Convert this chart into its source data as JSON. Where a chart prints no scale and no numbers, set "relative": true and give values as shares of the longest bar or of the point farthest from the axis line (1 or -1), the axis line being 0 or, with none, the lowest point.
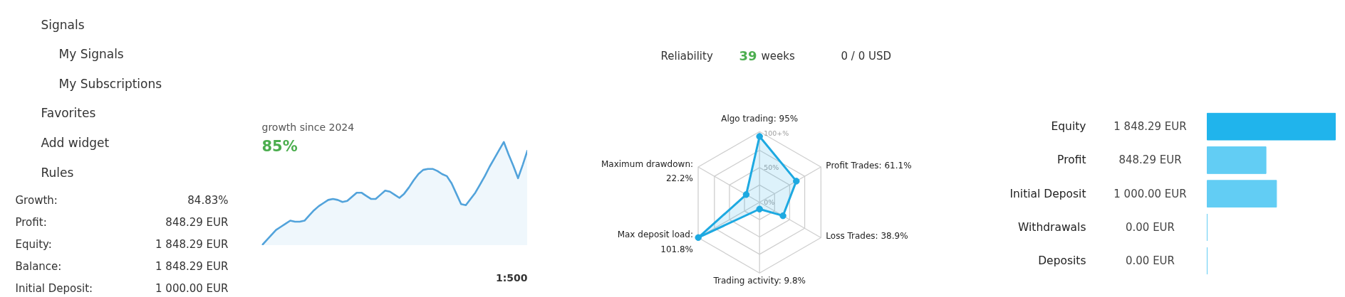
{
  "chart_data": [
    {
      "type": "other",
      "annotations": [
        "Signals",
        "My Signals",
        "My Subscriptions",
        "Favorites",
        "Add widget",
        "Rules"
      ]
    },
    {
      "type": "other",
      "annotations": [
        "Growth:",
        "84.83%",
        "Profit:",
        "848.29 EUR",
        "Equity:",
        "1 848.29 EUR",
        "Balance:",
        "1 848.29 EUR",
        "Initial Deposit:",
        "1 000.00 EUR"
      ]
    },
    {
      "type": "other",
      "annotations": [
        "Reliability",
        "39",
        "weeks",
        "0 / 0 USD"
      ]
    },
    {
      "type": "area",
      "title": "growth since 2024",
      "subtitle": "85%",
      "annotations": [
        "1:500"
      ],
      "relative": true,
      "categories": [
        null,
        null,
        null,
        null,
        null,
        null,
        null,
        null,
        null,
        null,
        null,
        null,
        null,
        null,
        null,
        null,
        null,
        null,
        null,
        null,
        null,
        null,
        null,
        null,
        null,
        null,
        null,
        null,
        null,
        null,
        null,
        null,
        null,
        null,
        null,
        null,
        null,
        null,
        null,
        null,
        null,
        null,
        null,
        null,
        null,
        null,
        null,
        null,
        null,
        null,
        null,
        null,
        null,
        null,
        null,
        null,
        null
      ],
      "series": [
        {
          "color": "#52a3db",
          "values": [
            0.0,
            0.05,
            0.1,
            0.15,
            0.18,
            0.21,
            0.24,
            0.23,
            0.23,
            0.24,
            0.29,
            0.34,
            0.38,
            0.41,
            0.44,
            0.45,
            0.44,
            0.42,
            0.43,
            0.47,
            0.51,
            0.51,
            0.48,
            0.45,
            0.45,
            0.49,
            0.53,
            0.52,
            0.49,
            0.46,
            0.5,
            0.56,
            0.63,
            0.69,
            0.73,
            0.74,
            0.74,
            0.72,
            0.69,
            0.67,
            0.6,
            0.5,
            0.4,
            0.39,
            0.45,
            0.51,
            0.59,
            0.67,
            0.76,
            0.84,
            0.92,
            1.0,
            0.88,
            0.77,
            0.65,
            0.78,
            0.92
          ]
        }
      ]
    },
    {
      "type": "radar",
      "categories": [
        "Algo trading: 95%",
        "Profit Trades: 61.1%",
        "Loss Trades: 38.9%",
        "Trading activity: 9.8%",
        "Max deposit load: 101.8%",
        "Maximum drawdown: 22.2%"
      ],
      "series": [
        {
          "color": "#1da9e1",
          "values": [
            95,
            61.1,
            38.9,
            9.8,
            101.8,
            22.2
          ]
        }
      ],
      "ylim": [
        0,
        102
      ],
      "yticks": [
        {
          "value": 0,
          "label": "0%"
        },
        {
          "value": 50,
          "label": "50%"
        },
        {
          "value": 100,
          "label": "100+%"
        }
      ],
      "grid": true,
      "marker": "circle"
    },
    {
      "type": "bar",
      "orientation": "horizontal",
      "categories": [
        "Equity",
        "Profit",
        "Initial Deposit",
        "Withdrawals",
        "Deposits"
      ],
      "values": [
        1848.29,
        848.29,
        1000.0,
        0,
        0
      ],
      "value_labels": [
        "1 848.29 EUR",
        "848.29 EUR",
        "1 000.00 EUR",
        "0.00 EUR",
        "0.00 EUR"
      ],
      "colors": [
        "#20b4ec",
        "#62cdf4",
        "#62cdf4",
        "#62cdf4",
        "#62cdf4"
      ]
    }
  ]
}
